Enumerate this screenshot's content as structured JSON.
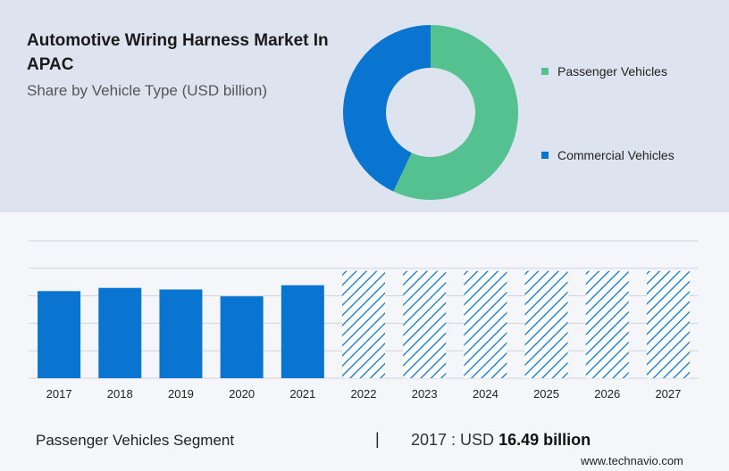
{
  "header": {
    "title": "Automotive Wiring Harness Market In APAC",
    "subtitle": "Share by Vehicle Type (USD billion)"
  },
  "donut": {
    "segments": [
      {
        "label": "Passenger Vehicles",
        "share": 57,
        "color": "#55c191"
      },
      {
        "label": "Commercial Vehicles",
        "share": 43,
        "color": "#0a75d0"
      }
    ]
  },
  "chart_data": {
    "type": "bar",
    "categories": [
      "2017",
      "2018",
      "2019",
      "2020",
      "2021",
      "2022",
      "2023",
      "2024",
      "2025",
      "2026",
      "2027"
    ],
    "values": [
      16.49,
      17.1,
      16.8,
      15.5,
      17.6,
      20.3,
      20.3,
      20.3,
      20.3,
      20.3,
      20.3
    ],
    "forecast_from": "2022",
    "ylim": [
      0,
      26
    ],
    "grid": true,
    "color": "#0a75d0"
  },
  "footer": {
    "segment_label": "Passenger Vehicles Segment",
    "separator": "|",
    "value_prefix": "2017 : USD ",
    "value_bold": "16.49 billion"
  },
  "brand": "www.technavio.com"
}
